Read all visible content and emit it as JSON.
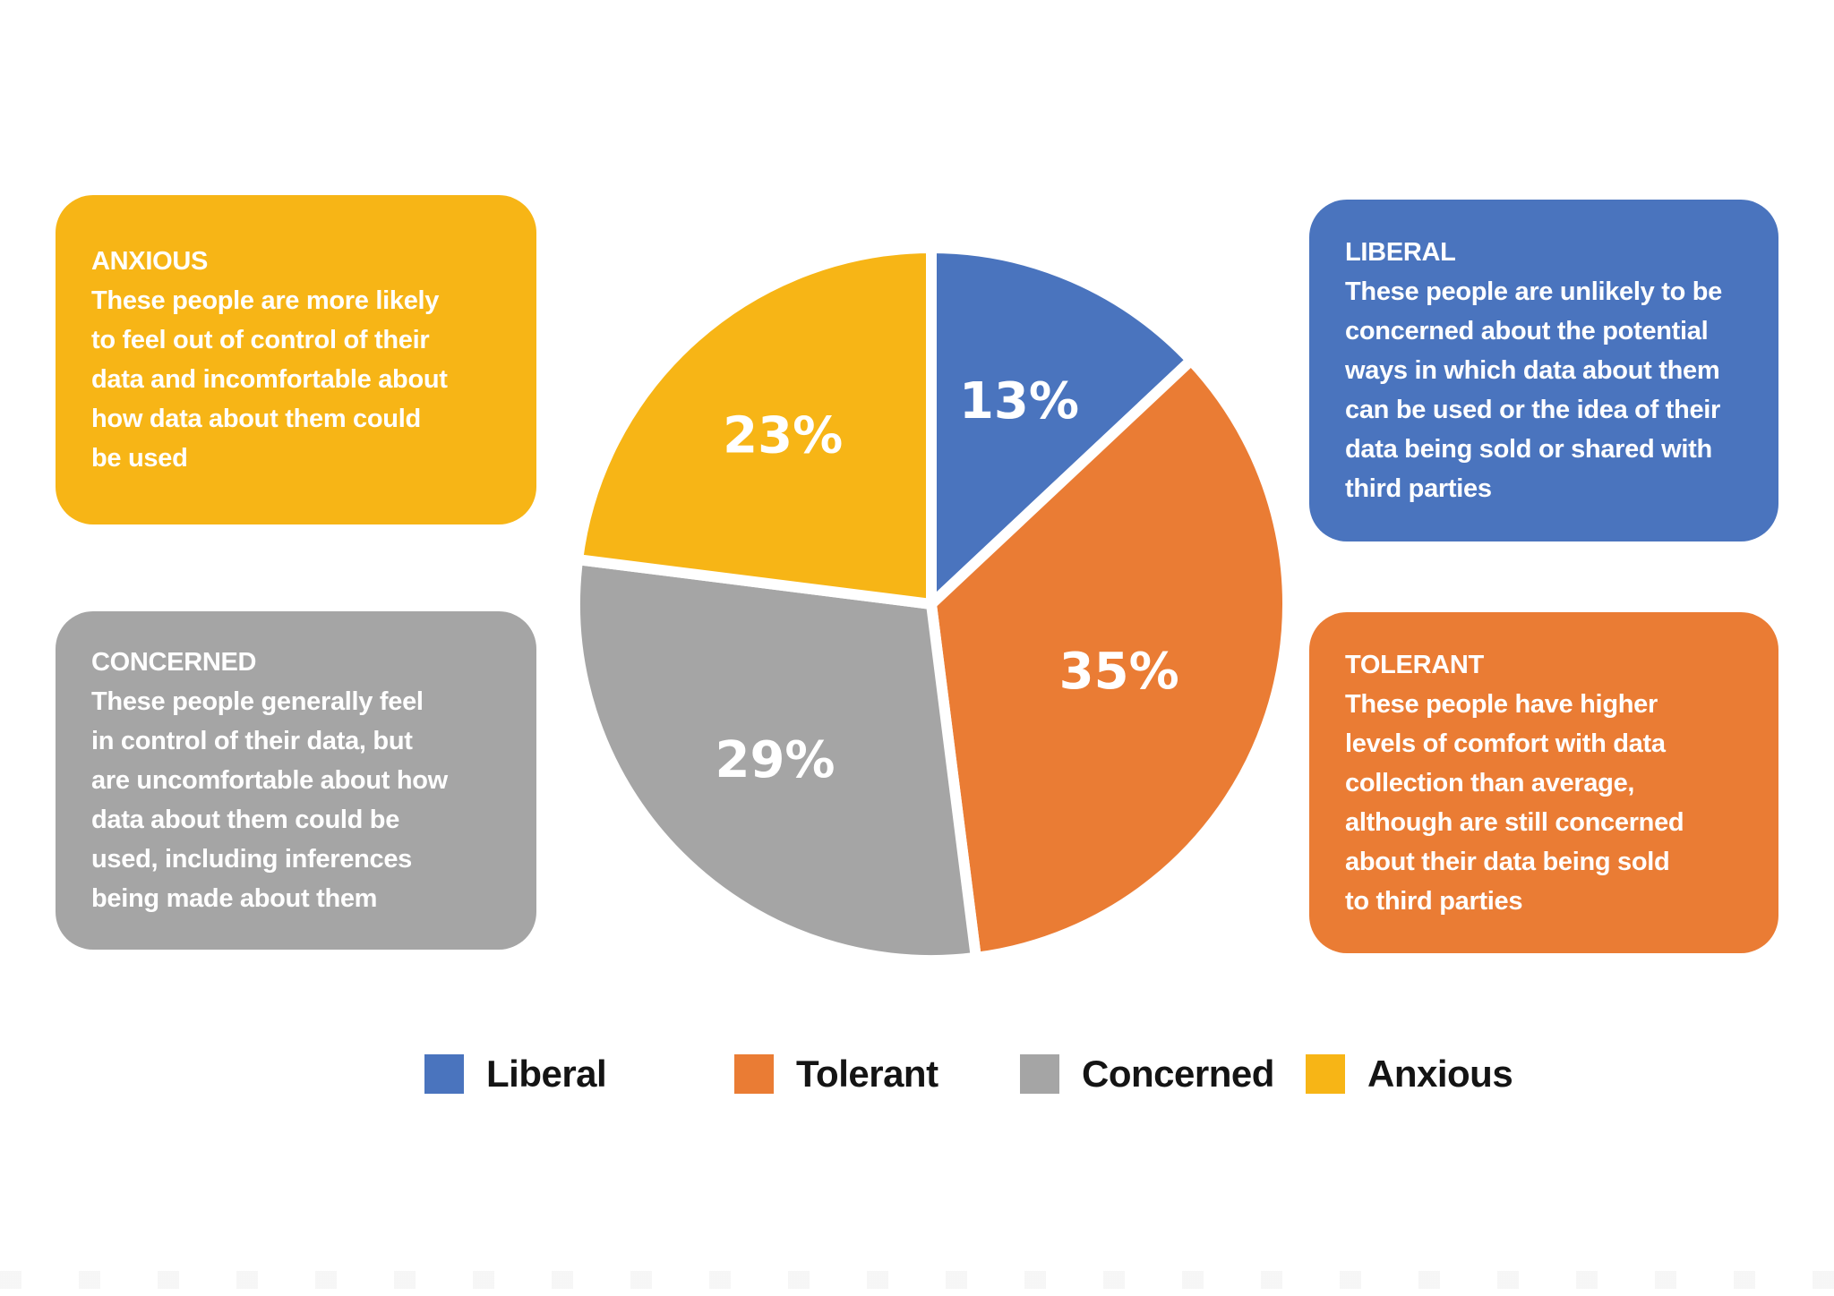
{
  "colors": {
    "liberal": "#4A74BE",
    "tolerant": "#EA7C34",
    "concerned": "#A5A5A5",
    "anxious": "#F7B516",
    "panel_text": "#FFFFFF",
    "legend_text": "#141414",
    "background": "#FFFFFF",
    "slice_border": "#FFFFFF"
  },
  "callouts": {
    "anxious": {
      "title": "ANXIOUS",
      "body": "These people are more likely\nto feel out of control of their\ndata and incomfortable about\nhow data about them could\nbe used"
    },
    "concerned": {
      "title": "CONCERNED",
      "body": "These people generally feel\nin control of their data, but\nare uncomfortable about how\ndata about them could be\nused, including inferences\nbeing made about them"
    },
    "liberal": {
      "title": "LIBERAL",
      "body": "These people are unlikely to be\nconcerned about the potential\nways in which data about them\ncan be used or the idea of their\ndata being sold or shared with\nthird parties"
    },
    "tolerant": {
      "title": "TOLERANT",
      "body": "These people have higher\nlevels of comfort with data\ncollection than average,\nalthough are still concerned\nabout their data being sold\nto third parties"
    }
  },
  "legend": {
    "items": [
      {
        "label": "Liberal",
        "color_key": "liberal"
      },
      {
        "label": "Tolerant",
        "color_key": "tolerant"
      },
      {
        "label": "Concerned",
        "color_key": "concerned"
      },
      {
        "label": "Anxious",
        "color_key": "anxious"
      }
    ]
  },
  "chart_data": {
    "type": "pie",
    "categories": [
      "Liberal",
      "Tolerant",
      "Concerned",
      "Anxious"
    ],
    "values": [
      13,
      35,
      29,
      23
    ],
    "unit": "%",
    "slice_labels": [
      "13%",
      "35%",
      "29%",
      "23%"
    ],
    "slice_colors": [
      "#4A74BE",
      "#EA7C34",
      "#A5A5A5",
      "#F7B516"
    ],
    "start_angle_deg": 0,
    "direction": "clockwise",
    "slice_gap_color": "#FFFFFF",
    "label_radius_frac": [
      0.62,
      0.56,
      0.62,
      0.63
    ],
    "label_color": "#FFFFFF",
    "legend_position": "bottom",
    "title": ""
  }
}
